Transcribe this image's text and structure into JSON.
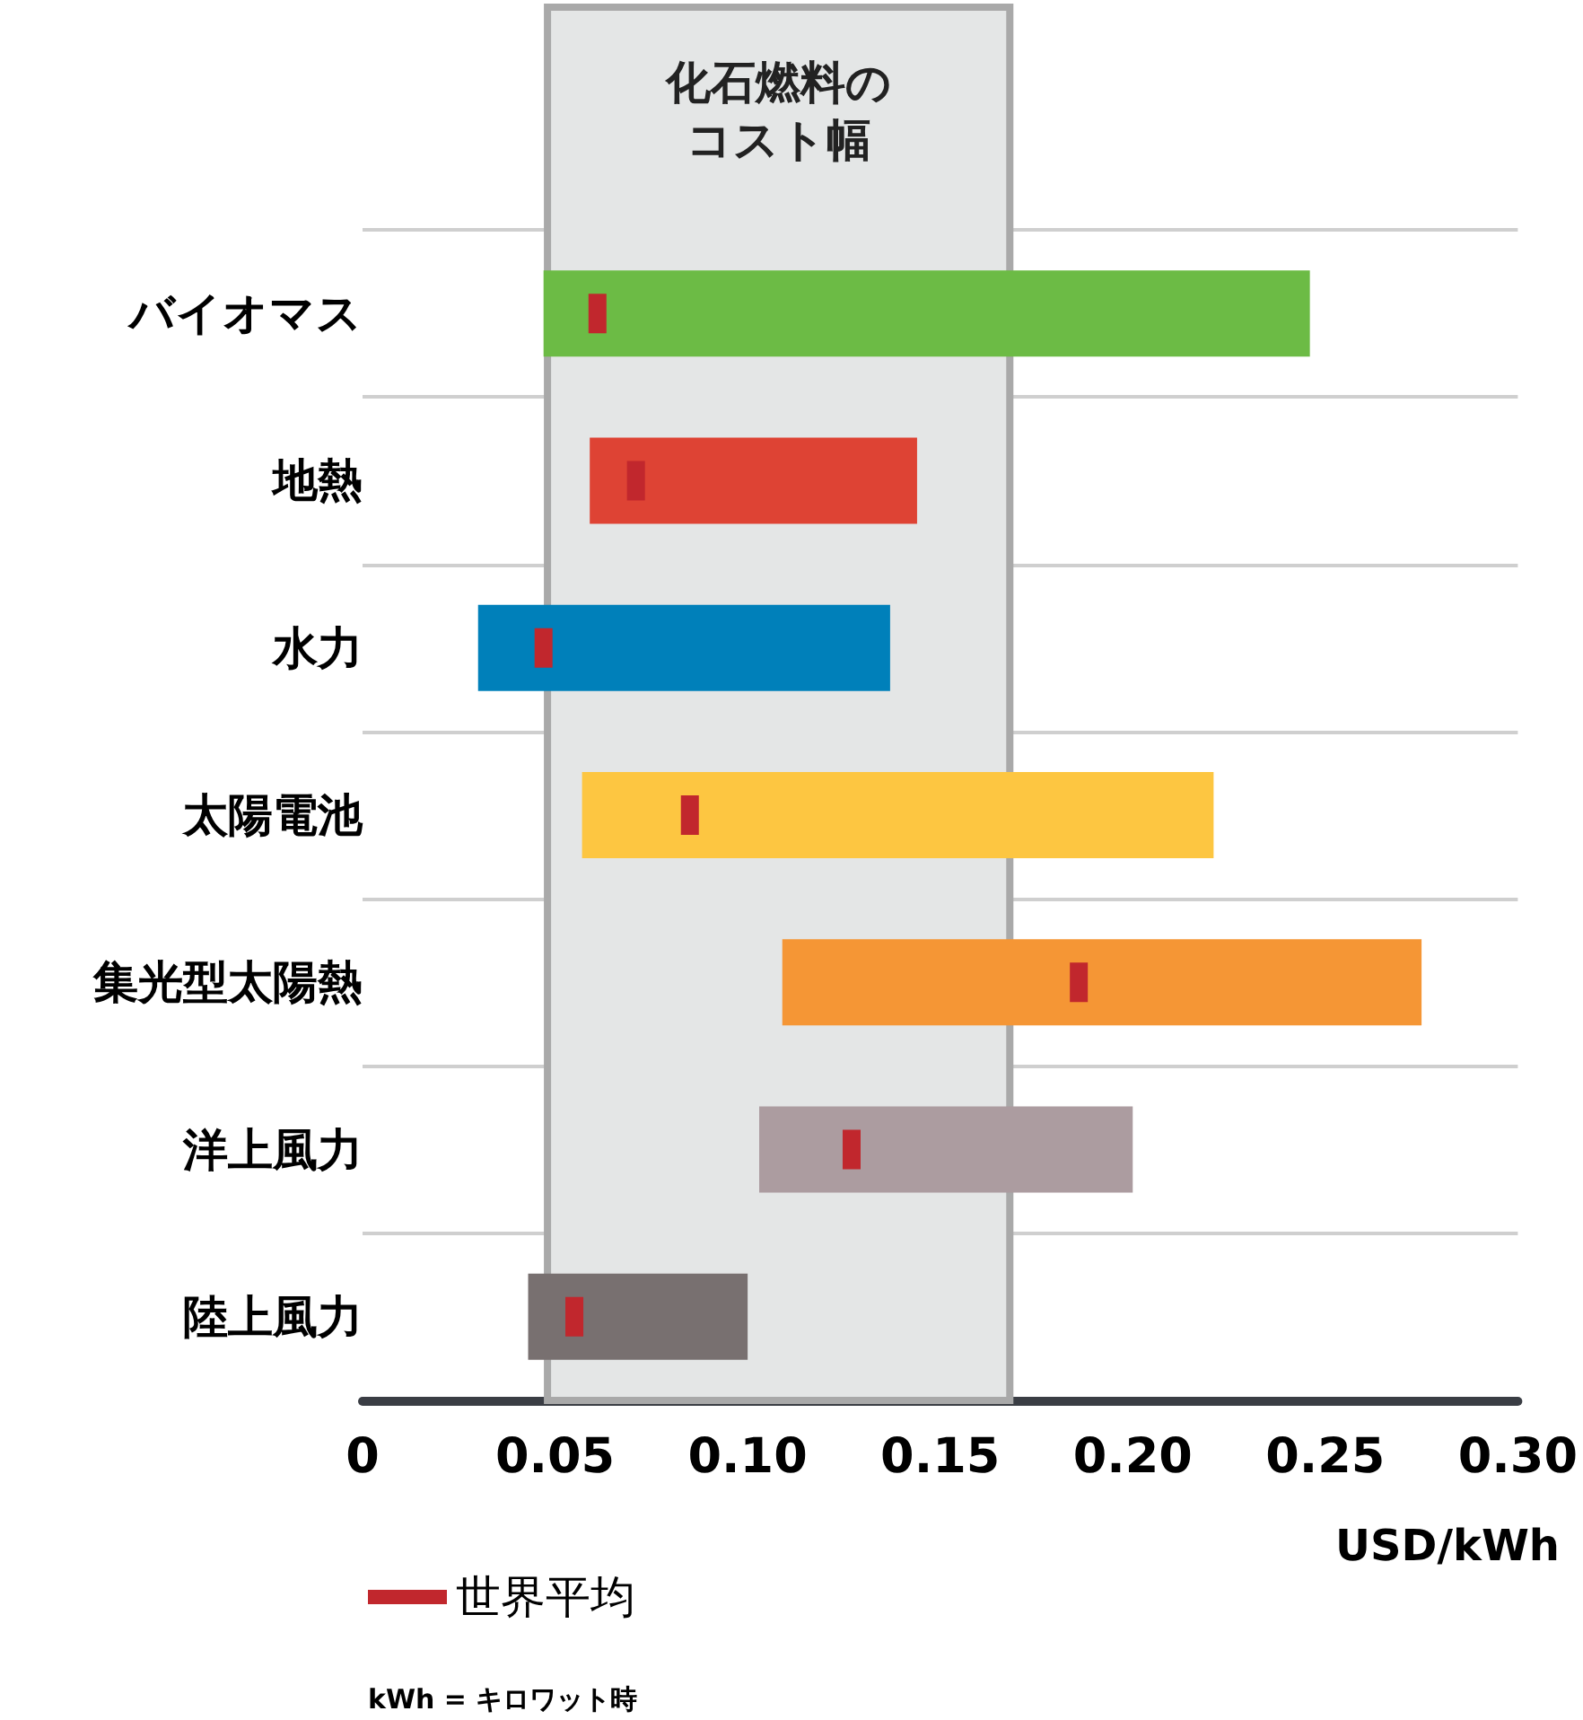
{
  "chart_data": {
    "type": "bar",
    "orientation": "horizontal",
    "xlabel": "USD/kWh",
    "categories": [
      "バイオマス",
      "地熱",
      "水力",
      "太陽電池",
      "集光型太陽熱",
      "洋上風力",
      "陸上風力"
    ],
    "series": [
      {
        "type": "bar",
        "values": [
          0.199,
          0.085,
          0.107,
          0.164,
          0.166,
          0.097,
          0.057
        ],
        "base": [
          0.047,
          0.059,
          0.03,
          0.057,
          0.109,
          0.103,
          0.043
        ],
        "colors": [
          "#6cbb45",
          "#de4334",
          "#0080ba",
          "#fdc641",
          "#f59635",
          "#ac9ca0",
          "#787070"
        ]
      },
      {
        "type": "scatter",
        "name": "世界平均",
        "color": "#c1272d",
        "values": [
          0.061,
          0.071,
          0.047,
          0.085,
          0.186,
          0.127,
          0.055
        ]
      }
    ],
    "xlim": [
      0,
      0.3
    ],
    "xticks": [
      0,
      {
        "value": 0.05,
        "label": "0.05"
      },
      {
        "value": 0.1,
        "label": "0.10"
      },
      {
        "value": 0.15,
        "label": "0.15"
      },
      {
        "value": 0.2,
        "label": "0.20"
      },
      {
        "value": 0.25,
        "label": "0.25"
      },
      {
        "value": 0.3,
        "label": "0.30"
      }
    ],
    "bands": [
      {
        "axis": "x",
        "from": 0.048,
        "to": 0.168,
        "label": "化石燃料のコスト幅",
        "color": "#e4e6e6"
      }
    ],
    "grid": "y",
    "legend": "bottom left",
    "annotations": [
      "kWh = キロワット時"
    ]
  }
}
